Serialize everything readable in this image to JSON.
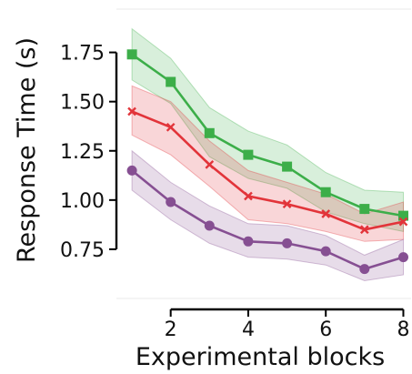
{
  "chart_data": {
    "type": "line",
    "title": "",
    "xlabel": "Experimental blocks",
    "ylabel": "Response Time (s)",
    "x": [
      1,
      2,
      3,
      4,
      5,
      6,
      7,
      8
    ],
    "xticks": [
      2,
      4,
      6,
      8
    ],
    "xtick_labels": [
      "2",
      "4",
      "6",
      "8"
    ],
    "yticks": [
      0.75,
      1.0,
      1.25,
      1.5,
      1.75
    ],
    "ytick_labels": [
      "0.75",
      "1.00",
      "1.25",
      "1.50",
      "1.75"
    ],
    "xlim": [
      0.6,
      8.2
    ],
    "ylim": [
      0.5,
      1.97
    ],
    "grid": false,
    "series": [
      {
        "marker": "square",
        "color": "#3cae49",
        "band_color": "#3cae49",
        "values": [
          1.74,
          1.6,
          1.34,
          1.23,
          1.17,
          1.04,
          0.955,
          0.92
        ],
        "lower": [
          1.61,
          1.49,
          1.22,
          1.11,
          1.06,
          0.94,
          0.88,
          0.84
        ],
        "upper": [
          1.87,
          1.72,
          1.47,
          1.35,
          1.28,
          1.14,
          1.05,
          1.04
        ]
      },
      {
        "marker": "x",
        "color": "#e2343a",
        "band_color": "#e2343a",
        "values": [
          1.45,
          1.37,
          1.18,
          1.02,
          0.98,
          0.93,
          0.85,
          0.89
        ],
        "lower": [
          1.33,
          1.23,
          1.07,
          0.9,
          0.88,
          0.84,
          0.79,
          0.8
        ],
        "upper": [
          1.58,
          1.5,
          1.3,
          1.15,
          1.09,
          1.03,
          0.93,
          0.99
        ]
      },
      {
        "marker": "circle",
        "color": "#864f92",
        "band_color": "#864f92",
        "values": [
          1.15,
          0.99,
          0.87,
          0.79,
          0.78,
          0.74,
          0.65,
          0.71
        ],
        "lower": [
          1.05,
          0.9,
          0.78,
          0.71,
          0.7,
          0.67,
          0.59,
          0.62
        ],
        "upper": [
          1.25,
          1.09,
          0.97,
          0.88,
          0.87,
          0.82,
          0.72,
          0.8
        ]
      }
    ]
  }
}
